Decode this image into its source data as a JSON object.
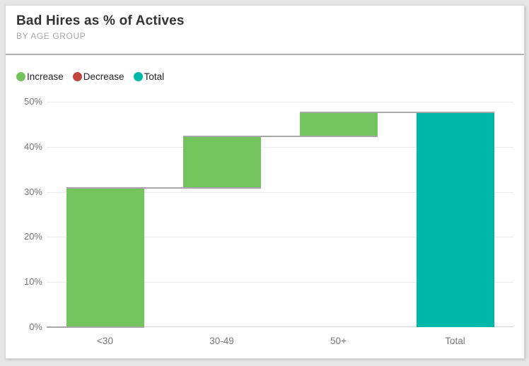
{
  "card": {
    "title": "Bad Hires as % of Actives",
    "subtitle": "BY AGE GROUP"
  },
  "legend": [
    {
      "label": "Increase",
      "color": "#74c45e"
    },
    {
      "label": "Decrease",
      "color": "#c24540"
    },
    {
      "label": "Total",
      "color": "#00b8aa"
    }
  ],
  "chart_data": {
    "type": "bar",
    "subtype": "waterfall",
    "title": "Bad Hires as % of Actives",
    "subtitle": "BY AGE GROUP",
    "categories": [
      "<30",
      "30-49",
      "50+",
      "Total"
    ],
    "steps": [
      {
        "category": "<30",
        "start": 0,
        "end": 30.9,
        "delta": 30.9,
        "kind": "increase"
      },
      {
        "category": "30-49",
        "start": 30.9,
        "end": 42.3,
        "delta": 11.4,
        "kind": "increase"
      },
      {
        "category": "50+",
        "start": 42.3,
        "end": 47.7,
        "delta": 5.4,
        "kind": "increase"
      },
      {
        "category": "Total",
        "start": 0,
        "end": 47.7,
        "delta": 47.7,
        "kind": "total"
      }
    ],
    "y_ticks": [
      {
        "label": "0%",
        "value": 0
      },
      {
        "label": "10%",
        "value": 10
      },
      {
        "label": "20%",
        "value": 20
      },
      {
        "label": "30%",
        "value": 30
      },
      {
        "label": "40%",
        "value": 40
      },
      {
        "label": "50%",
        "value": 50
      }
    ],
    "ylim": [
      0,
      50
    ],
    "grid": true,
    "legend_position": "top",
    "colors": {
      "increase": "#74c45e",
      "decrease": "#c24540",
      "total": "#00b8aa",
      "connector": "#a6a6a6",
      "gridline": "#ececec",
      "axis_text": "#777777"
    }
  }
}
